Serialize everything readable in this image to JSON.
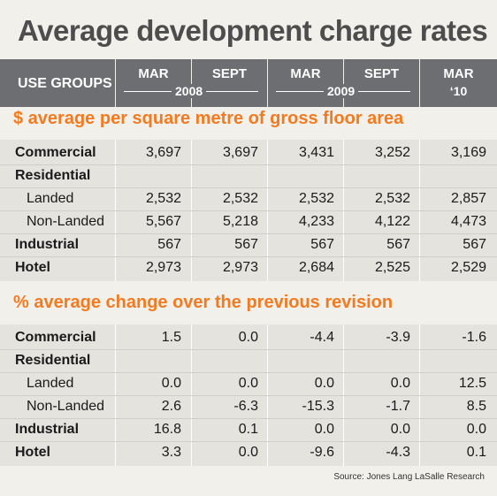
{
  "title": "Average development charge rates",
  "header": {
    "use_groups_label": "USE GROUPS",
    "columns": [
      "MAR",
      "SEPT",
      "MAR",
      "SEPT",
      "MAR"
    ],
    "years": [
      "2008",
      "2009"
    ],
    "last_column_year": "‘10"
  },
  "sections": [
    {
      "title": "$ average per square metre of gross floor area",
      "rows": [
        {
          "label": "Commercial",
          "values": [
            "3,697",
            "3,697",
            "3,431",
            "3,252",
            "3,169"
          ]
        },
        {
          "label": "Residential",
          "values": []
        },
        {
          "label": "Landed",
          "values": [
            "2,532",
            "2,532",
            "2,532",
            "2,532",
            "2,857"
          ]
        },
        {
          "label": "Non-Landed",
          "values": [
            "5,567",
            "5,218",
            "4,233",
            "4,122",
            "4,473"
          ]
        },
        {
          "label": "Industrial",
          "values": [
            "567",
            "567",
            "567",
            "567",
            "567"
          ]
        },
        {
          "label": "Hotel",
          "values": [
            "2,973",
            "2,973",
            "2,684",
            "2,525",
            "2,529"
          ]
        }
      ]
    },
    {
      "title": "% average change over the previous revision",
      "rows": [
        {
          "label": "Commercial",
          "values": [
            "1.5",
            "0.0",
            "-4.4",
            "-3.9",
            "-1.6"
          ]
        },
        {
          "label": "Residential",
          "values": []
        },
        {
          "label": "Landed",
          "values": [
            "0.0",
            "0.0",
            "0.0",
            "0.0",
            "12.5"
          ]
        },
        {
          "label": "Non-Landed",
          "values": [
            "2.6",
            "-6.3",
            "-15.3",
            "-1.7",
            "8.5"
          ]
        },
        {
          "label": "Industrial",
          "values": [
            "16.8",
            "0.1",
            "0.0",
            "0.0",
            "0.0"
          ]
        },
        {
          "label": "Hotel",
          "values": [
            "3.3",
            "0.0",
            "-9.6",
            "-4.3",
            "0.1"
          ]
        }
      ]
    }
  ],
  "source": "Source: Jones Lang LaSalle Research",
  "chart_data": {
    "type": "table",
    "columns": [
      "Mar 2008",
      "Sept 2008",
      "Mar 2009",
      "Sept 2009",
      "Mar '10"
    ],
    "rows": {
      "average_per_sqm": {
        "Commercial": [
          3697,
          3697,
          3431,
          3252,
          3169
        ],
        "Landed": [
          2532,
          2532,
          2532,
          2532,
          2857
        ],
        "Non-Landed": [
          5567,
          5218,
          4233,
          4122,
          4473
        ],
        "Industrial": [
          567,
          567,
          567,
          567,
          567
        ],
        "Hotel": [
          2973,
          2973,
          2684,
          2525,
          2529
        ]
      },
      "percent_change": {
        "Commercial": [
          1.5,
          0.0,
          -4.4,
          -3.9,
          -1.6
        ],
        "Landed": [
          0.0,
          0.0,
          0.0,
          0.0,
          12.5
        ],
        "Non-Landed": [
          2.6,
          -6.3,
          -15.3,
          -1.7,
          8.5
        ],
        "Industrial": [
          16.8,
          0.1,
          0.0,
          0.0,
          0.0
        ],
        "Hotel": [
          3.3,
          0.0,
          -9.6,
          -4.3,
          0.1
        ]
      }
    }
  }
}
